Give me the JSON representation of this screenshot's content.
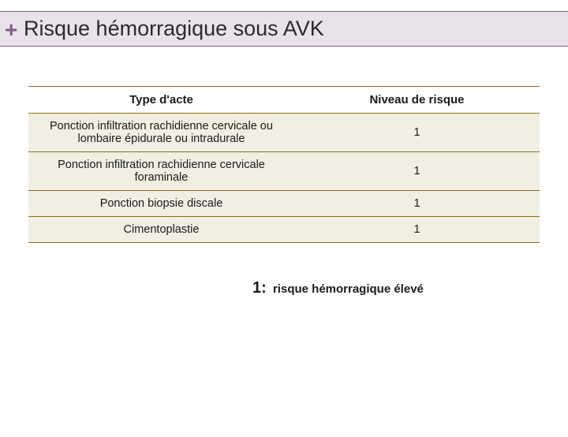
{
  "header": {
    "plus_symbol": "+",
    "title": "Risque hémorragique sous AVK"
  },
  "table": {
    "columns": [
      "Type d'acte",
      "Niveau de risque"
    ],
    "rows": [
      [
        "Ponction infiltration rachidienne cervicale ou lombaire épidurale ou intradurale",
        "1"
      ],
      [
        "Ponction infiltration rachidienne cervicale foraminale",
        "1"
      ],
      [
        "Ponction biopsie discale",
        "1"
      ],
      [
        "Cimentoplastie",
        "1"
      ]
    ],
    "header_bg": "#ffffff",
    "row_bg": "#f0efe2",
    "border_color": "#8c6e1c",
    "font_size": 15
  },
  "legend": {
    "number": "1:",
    "text": "risque hémorragique élevé"
  },
  "colors": {
    "title_band_bg": "#e9e2ea",
    "title_band_border": "#7e5d84",
    "plus_color": "#7e5d84",
    "page_bg": "#ffffff",
    "text_color": "#1a1a1a"
  }
}
